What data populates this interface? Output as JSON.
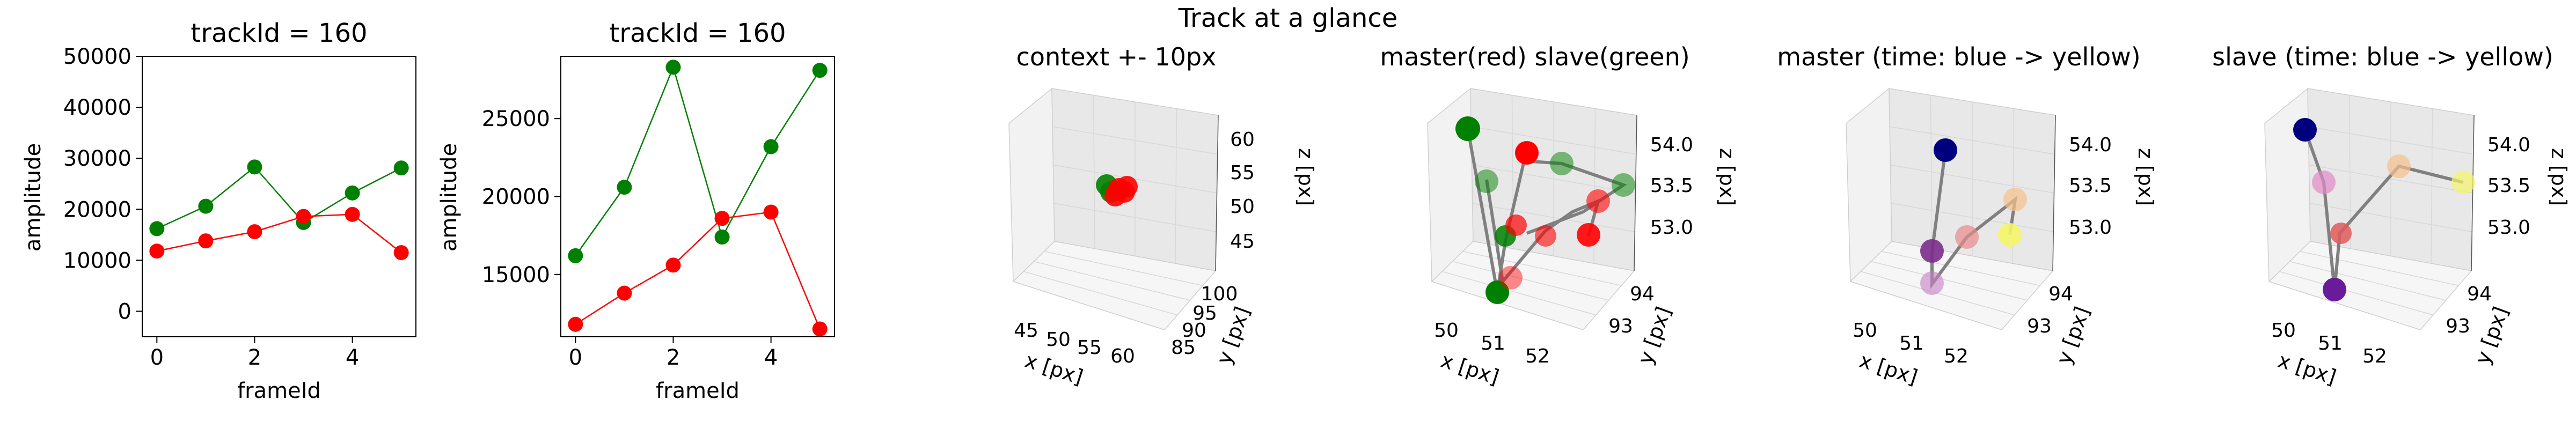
{
  "figure": {
    "suptitle": "Track at a glance"
  },
  "chart_data": [
    {
      "type": "line",
      "title": "trackId = 160",
      "xlabel": "frameId",
      "ylabel": "amplitude",
      "x": [
        0,
        1,
        2,
        3,
        4,
        5
      ],
      "xticks": [
        0,
        2,
        4
      ],
      "xlim": [
        -0.3,
        5.3
      ],
      "ylim": [
        -5000,
        50000
      ],
      "yticks": [
        0,
        10000,
        20000,
        30000,
        40000,
        50000
      ],
      "series": [
        {
          "color": "#008000",
          "values": [
            16200,
            20600,
            28300,
            17400,
            23200,
            28100
          ]
        },
        {
          "color": "#ff0000",
          "values": [
            11800,
            13800,
            15600,
            18600,
            19000,
            11500
          ]
        }
      ]
    },
    {
      "type": "line",
      "title": "trackId = 160",
      "xlabel": "frameId",
      "ylabel": "amplitude",
      "x": [
        0,
        1,
        2,
        3,
        4,
        5
      ],
      "xticks": [
        0,
        2,
        4
      ],
      "xlim": [
        -0.3,
        5.3
      ],
      "ylim": [
        11000,
        29000
      ],
      "yticks": [
        15000,
        20000,
        25000
      ],
      "series": [
        {
          "color": "#008000",
          "values": [
            16200,
            20600,
            28300,
            17400,
            23200,
            28100
          ]
        },
        {
          "color": "#ff0000",
          "values": [
            11800,
            13800,
            15600,
            18600,
            19000,
            11500
          ]
        }
      ]
    },
    {
      "type": "scatter",
      "projection": "3d",
      "title": "context +- 10px",
      "xlabel": "x [px]",
      "ylabel": "y [px]",
      "zlabel": "z [px]",
      "xticks": [
        "45",
        "50",
        "55",
        "60"
      ],
      "yticks": [
        "85",
        "90",
        "95",
        "100"
      ],
      "zticks": [
        "45",
        "50",
        "55",
        "60"
      ],
      "points": [
        {
          "color": "#ff0000",
          "x": 51,
          "y": 93,
          "z": 53
        },
        {
          "color": "#008000",
          "x": 50,
          "y": 93,
          "z": 54
        }
      ]
    },
    {
      "type": "scatter",
      "projection": "3d",
      "title": "master(red) slave(green)",
      "xlabel": "x [px]",
      "ylabel": "y [px]",
      "zlabel": "z [px]",
      "xticks": [
        "50",
        "51",
        "52"
      ],
      "yticks": [
        "93",
        "94"
      ],
      "zticks": [
        "53.0",
        "53.5",
        "54.0"
      ],
      "colors": {
        "master": "#ff0000",
        "slave": "#008000",
        "path": "#808080"
      }
    },
    {
      "type": "scatter",
      "projection": "3d",
      "title": "master (time: blue -> yellow)",
      "xlabel": "x [px]",
      "ylabel": "y [px]",
      "zlabel": "z [px]",
      "xticks": [
        "50",
        "51",
        "52"
      ],
      "yticks": [
        "93",
        "94"
      ],
      "zticks": [
        "53.0",
        "53.5",
        "54.0"
      ],
      "colors": [
        "#00007f",
        "#7b2c8b",
        "#c77fc7",
        "#e88a8a",
        "#f7c08a",
        "#f5f56a"
      ]
    },
    {
      "type": "scatter",
      "projection": "3d",
      "title": "slave (time: blue -> yellow)",
      "xlabel": "x [px]",
      "ylabel": "y [px]",
      "zlabel": "z [px]",
      "xticks": [
        "50",
        "51",
        "52"
      ],
      "yticks": [
        "93",
        "94"
      ],
      "zticks": [
        "53.0",
        "53.5",
        "54.0"
      ],
      "colors": [
        "#00007f",
        "#6a1b9a",
        "#e08ac8",
        "#e05a5a",
        "#f7c08a",
        "#f5f56a"
      ]
    }
  ]
}
